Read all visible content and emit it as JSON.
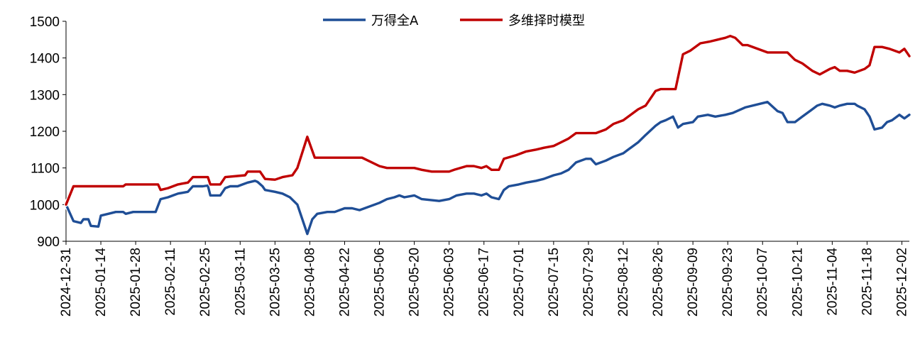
{
  "chart_data": {
    "type": "line",
    "title": "",
    "xlabel": "",
    "ylabel": "",
    "ylim": [
      900,
      1500
    ],
    "y_ticks": [
      900,
      1000,
      1100,
      1200,
      1300,
      1400,
      1500
    ],
    "x_ticks": [
      "2024-12-31",
      "2025-01-14",
      "2025-01-28",
      "2025-02-11",
      "2025-02-25",
      "2025-03-11",
      "2025-03-25",
      "2025-04-08",
      "2025-04-22",
      "2025-05-06",
      "2025-05-20",
      "2025-06-03",
      "2025-06-17",
      "2025-07-01",
      "2025-07-15",
      "2025-07-29",
      "2025-08-12",
      "2025-08-26",
      "2025-09-09",
      "2025-09-23",
      "2025-10-07",
      "2025-10-21",
      "2025-11-04",
      "2025-11-18",
      "2025-12-02"
    ],
    "x_end": "2025-12-05",
    "grid": false,
    "legend_position": "top-center",
    "series": [
      {
        "name": "万得全A",
        "color": "#1f4e96",
        "points": [
          [
            "2024-12-31",
            1000
          ],
          [
            "2025-01-03",
            955
          ],
          [
            "2025-01-06",
            950
          ],
          [
            "2025-01-07",
            960
          ],
          [
            "2025-01-09",
            960
          ],
          [
            "2025-01-10",
            942
          ],
          [
            "2025-01-13",
            940
          ],
          [
            "2025-01-14",
            970
          ],
          [
            "2025-01-17",
            975
          ],
          [
            "2025-01-20",
            980
          ],
          [
            "2025-01-23",
            980
          ],
          [
            "2025-01-24",
            975
          ],
          [
            "2025-01-27",
            980
          ],
          [
            "2025-02-05",
            980
          ],
          [
            "2025-02-07",
            1015
          ],
          [
            "2025-02-10",
            1020
          ],
          [
            "2025-02-12",
            1025
          ],
          [
            "2025-02-14",
            1030
          ],
          [
            "2025-02-18",
            1035
          ],
          [
            "2025-02-20",
            1050
          ],
          [
            "2025-02-24",
            1050
          ],
          [
            "2025-02-26",
            1052
          ],
          [
            "2025-02-27",
            1025
          ],
          [
            "2025-03-03",
            1025
          ],
          [
            "2025-03-05",
            1045
          ],
          [
            "2025-03-07",
            1050
          ],
          [
            "2025-03-10",
            1050
          ],
          [
            "2025-03-12",
            1055
          ],
          [
            "2025-03-14",
            1060
          ],
          [
            "2025-03-17",
            1065
          ],
          [
            "2025-03-18",
            1062
          ],
          [
            "2025-03-20",
            1050
          ],
          [
            "2025-03-21",
            1040
          ],
          [
            "2025-03-25",
            1035
          ],
          [
            "2025-03-28",
            1030
          ],
          [
            "2025-03-31",
            1020
          ],
          [
            "2025-04-03",
            1000
          ],
          [
            "2025-04-07",
            920
          ],
          [
            "2025-04-09",
            960
          ],
          [
            "2025-04-11",
            975
          ],
          [
            "2025-04-15",
            980
          ],
          [
            "2025-04-18",
            980
          ],
          [
            "2025-04-22",
            990
          ],
          [
            "2025-04-25",
            990
          ],
          [
            "2025-04-28",
            985
          ],
          [
            "2025-05-06",
            1005
          ],
          [
            "2025-05-09",
            1015
          ],
          [
            "2025-05-12",
            1020
          ],
          [
            "2025-05-14",
            1025
          ],
          [
            "2025-05-16",
            1020
          ],
          [
            "2025-05-20",
            1025
          ],
          [
            "2025-05-23",
            1015
          ],
          [
            "2025-05-27",
            1012
          ],
          [
            "2025-05-30",
            1010
          ],
          [
            "2025-06-03",
            1015
          ],
          [
            "2025-06-06",
            1025
          ],
          [
            "2025-06-10",
            1030
          ],
          [
            "2025-06-13",
            1030
          ],
          [
            "2025-06-16",
            1025
          ],
          [
            "2025-06-18",
            1030
          ],
          [
            "2025-06-20",
            1020
          ],
          [
            "2025-06-23",
            1015
          ],
          [
            "2025-06-25",
            1040
          ],
          [
            "2025-06-27",
            1050
          ],
          [
            "2025-07-01",
            1055
          ],
          [
            "2025-07-04",
            1060
          ],
          [
            "2025-07-08",
            1065
          ],
          [
            "2025-07-11",
            1070
          ],
          [
            "2025-07-15",
            1080
          ],
          [
            "2025-07-18",
            1085
          ],
          [
            "2025-07-21",
            1095
          ],
          [
            "2025-07-24",
            1115
          ],
          [
            "2025-07-28",
            1125
          ],
          [
            "2025-07-30",
            1125
          ],
          [
            "2025-08-01",
            1110
          ],
          [
            "2025-08-05",
            1120
          ],
          [
            "2025-08-08",
            1130
          ],
          [
            "2025-08-12",
            1140
          ],
          [
            "2025-08-14",
            1150
          ],
          [
            "2025-08-18",
            1170
          ],
          [
            "2025-08-21",
            1190
          ],
          [
            "2025-08-25",
            1215
          ],
          [
            "2025-08-27",
            1225
          ],
          [
            "2025-08-29",
            1230
          ],
          [
            "2025-09-01",
            1240
          ],
          [
            "2025-09-03",
            1210
          ],
          [
            "2025-09-05",
            1220
          ],
          [
            "2025-09-09",
            1225
          ],
          [
            "2025-09-11",
            1240
          ],
          [
            "2025-09-15",
            1245
          ],
          [
            "2025-09-18",
            1240
          ],
          [
            "2025-09-22",
            1245
          ],
          [
            "2025-09-25",
            1250
          ],
          [
            "2025-09-30",
            1265
          ],
          [
            "2025-10-09",
            1280
          ],
          [
            "2025-10-13",
            1255
          ],
          [
            "2025-10-15",
            1250
          ],
          [
            "2025-10-17",
            1225
          ],
          [
            "2025-10-20",
            1225
          ],
          [
            "2025-10-23",
            1240
          ],
          [
            "2025-10-27",
            1260
          ],
          [
            "2025-10-29",
            1270
          ],
          [
            "2025-10-31",
            1275
          ],
          [
            "2025-11-03",
            1270
          ],
          [
            "2025-11-05",
            1265
          ],
          [
            "2025-11-07",
            1270
          ],
          [
            "2025-11-10",
            1275
          ],
          [
            "2025-11-13",
            1275
          ],
          [
            "2025-11-14",
            1270
          ],
          [
            "2025-11-17",
            1260
          ],
          [
            "2025-11-19",
            1240
          ],
          [
            "2025-11-21",
            1205
          ],
          [
            "2025-11-24",
            1210
          ],
          [
            "2025-11-26",
            1225
          ],
          [
            "2025-11-28",
            1230
          ],
          [
            "2025-12-01",
            1245
          ],
          [
            "2025-12-03",
            1235
          ],
          [
            "2025-12-05",
            1245
          ]
        ]
      },
      {
        "name": "多维择时模型",
        "color": "#c00000",
        "points": [
          [
            "2024-12-31",
            1000
          ],
          [
            "2025-01-03",
            1050
          ],
          [
            "2025-01-23",
            1050
          ],
          [
            "2025-01-24",
            1055
          ],
          [
            "2025-02-06",
            1055
          ],
          [
            "2025-02-07",
            1040
          ],
          [
            "2025-02-10",
            1045
          ],
          [
            "2025-02-14",
            1055
          ],
          [
            "2025-02-18",
            1060
          ],
          [
            "2025-02-20",
            1075
          ],
          [
            "2025-02-26",
            1075
          ],
          [
            "2025-02-27",
            1055
          ],
          [
            "2025-03-03",
            1055
          ],
          [
            "2025-03-05",
            1075
          ],
          [
            "2025-03-13",
            1080
          ],
          [
            "2025-03-14",
            1090
          ],
          [
            "2025-03-19",
            1090
          ],
          [
            "2025-03-21",
            1070
          ],
          [
            "2025-03-25",
            1068
          ],
          [
            "2025-03-28",
            1075
          ],
          [
            "2025-04-01",
            1080
          ],
          [
            "2025-04-03",
            1100
          ],
          [
            "2025-04-07",
            1185
          ],
          [
            "2025-04-10",
            1128
          ],
          [
            "2025-04-29",
            1128
          ],
          [
            "2025-05-06",
            1105
          ],
          [
            "2025-05-09",
            1100
          ],
          [
            "2025-05-16",
            1100
          ],
          [
            "2025-05-20",
            1100
          ],
          [
            "2025-05-23",
            1095
          ],
          [
            "2025-05-27",
            1090
          ],
          [
            "2025-06-03",
            1090
          ],
          [
            "2025-06-05",
            1095
          ],
          [
            "2025-06-10",
            1105
          ],
          [
            "2025-06-13",
            1105
          ],
          [
            "2025-06-16",
            1100
          ],
          [
            "2025-06-18",
            1105
          ],
          [
            "2025-06-20",
            1095
          ],
          [
            "2025-06-23",
            1095
          ],
          [
            "2025-06-25",
            1125
          ],
          [
            "2025-06-30",
            1135
          ],
          [
            "2025-07-04",
            1145
          ],
          [
            "2025-07-08",
            1150
          ],
          [
            "2025-07-11",
            1155
          ],
          [
            "2025-07-15",
            1160
          ],
          [
            "2025-07-18",
            1170
          ],
          [
            "2025-07-21",
            1180
          ],
          [
            "2025-07-24",
            1195
          ],
          [
            "2025-08-01",
            1195
          ],
          [
            "2025-08-05",
            1205
          ],
          [
            "2025-08-08",
            1220
          ],
          [
            "2025-08-12",
            1230
          ],
          [
            "2025-08-15",
            1245
          ],
          [
            "2025-08-18",
            1260
          ],
          [
            "2025-08-21",
            1270
          ],
          [
            "2025-08-25",
            1310
          ],
          [
            "2025-08-27",
            1315
          ],
          [
            "2025-09-02",
            1315
          ],
          [
            "2025-09-05",
            1410
          ],
          [
            "2025-09-08",
            1420
          ],
          [
            "2025-09-12",
            1440
          ],
          [
            "2025-09-16",
            1445
          ],
          [
            "2025-09-19",
            1450
          ],
          [
            "2025-09-22",
            1455
          ],
          [
            "2025-09-24",
            1460
          ],
          [
            "2025-09-26",
            1455
          ],
          [
            "2025-09-29",
            1435
          ],
          [
            "2025-10-01",
            1435
          ],
          [
            "2025-10-09",
            1415
          ],
          [
            "2025-10-17",
            1415
          ],
          [
            "2025-10-20",
            1395
          ],
          [
            "2025-10-23",
            1385
          ],
          [
            "2025-10-27",
            1365
          ],
          [
            "2025-10-30",
            1355
          ],
          [
            "2025-11-03",
            1370
          ],
          [
            "2025-11-05",
            1375
          ],
          [
            "2025-11-07",
            1365
          ],
          [
            "2025-11-10",
            1365
          ],
          [
            "2025-11-13",
            1360
          ],
          [
            "2025-11-17",
            1370
          ],
          [
            "2025-11-19",
            1380
          ],
          [
            "2025-11-21",
            1430
          ],
          [
            "2025-11-24",
            1430
          ],
          [
            "2025-11-27",
            1425
          ],
          [
            "2025-12-01",
            1415
          ],
          [
            "2025-12-03",
            1425
          ],
          [
            "2025-12-05",
            1405
          ]
        ]
      }
    ]
  }
}
